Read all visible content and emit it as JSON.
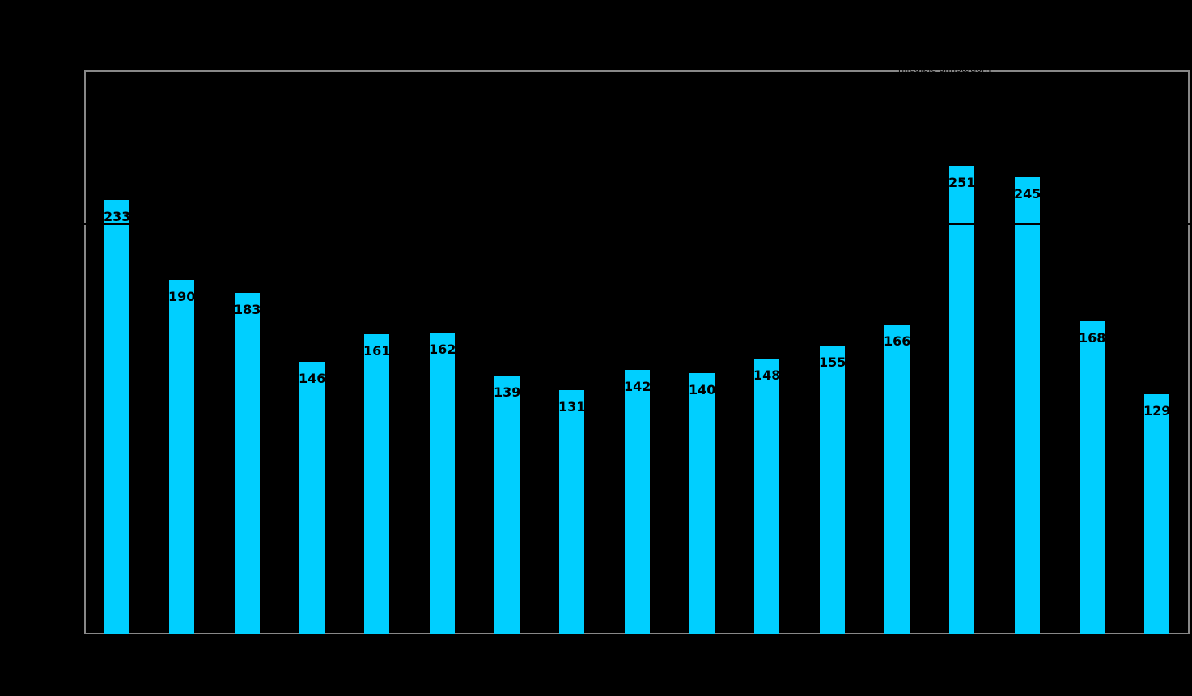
{
  "chart_data": {
    "type": "bar",
    "title": "",
    "xlabel": "",
    "ylabel": "",
    "x_tick_labels": [],
    "values": [
      233,
      190,
      183,
      146,
      161,
      162,
      139,
      131,
      142,
      140,
      148,
      155,
      166,
      251,
      245,
      168,
      129
    ],
    "bar_value_labels_shown": true,
    "ylim": [
      0,
      302
    ],
    "grid": false,
    "legend": null,
    "bar_color": "#00CFFF",
    "frame_color": "#888888",
    "background_color": "#000000",
    "value_label_color": "#000000",
    "reference_line": {
      "value_estimate": 220,
      "color": "#000000",
      "note": "horizontal black line, visible only where it crosses the two tallest bars (251 and 245)"
    },
    "annotation": {
      "text": "[illegible annotation]",
      "color": "#000000",
      "position": "overlapping top frame border, right of center"
    }
  }
}
